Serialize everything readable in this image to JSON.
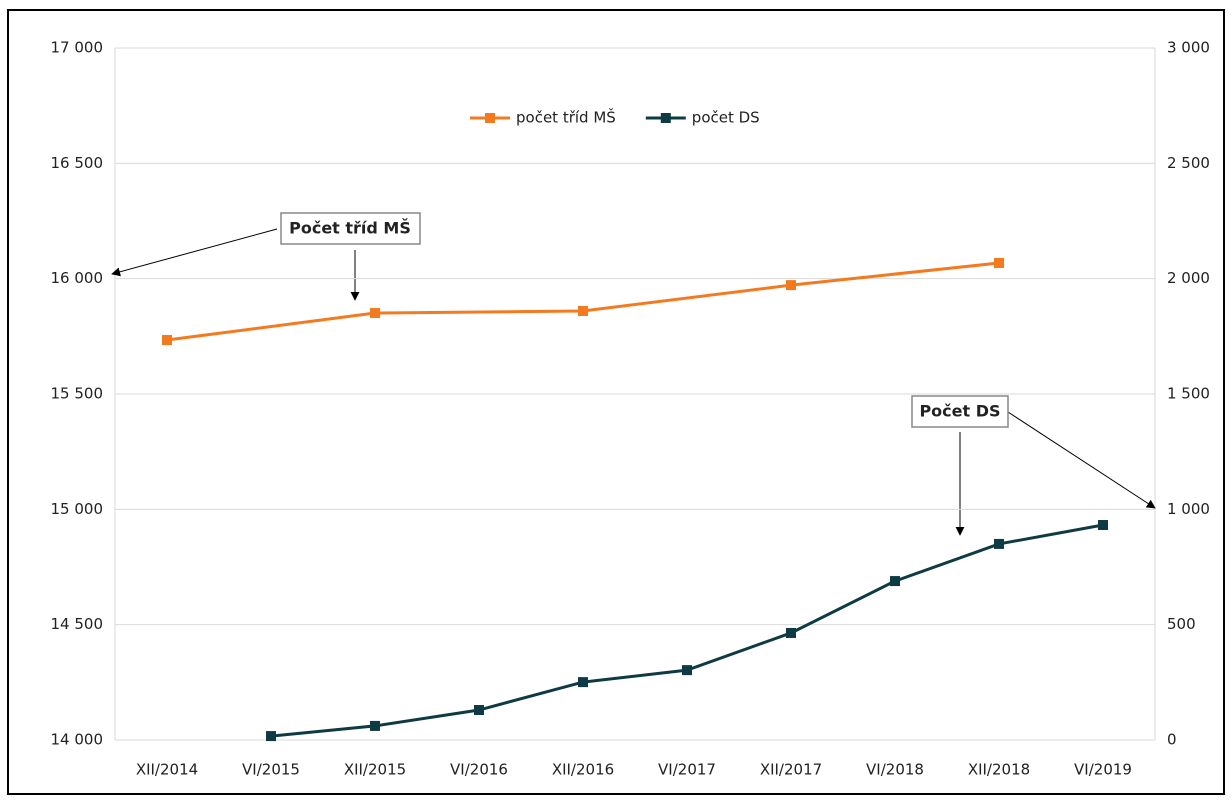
{
  "chart_data": {
    "type": "line",
    "categories": [
      "XII/2014",
      "VI/2015",
      "XII/2015",
      "VI/2016",
      "XII/2016",
      "VI/2017",
      "XII/2017",
      "VI/2018",
      "XII/2018",
      "VI/2019"
    ],
    "series": [
      {
        "name": "počet tříd MŠ",
        "color": "#f47a20",
        "values": [
          15734,
          null,
          15851,
          null,
          15860,
          null,
          15972,
          null,
          16068,
          null
        ]
      },
      {
        "name": "počet DS",
        "color": "#0e3b43",
        "axis": "y2",
        "values": [
          null,
          17,
          61,
          130,
          251,
          303,
          464,
          689,
          850,
          932
        ]
      }
    ],
    "ylim": [
      14000,
      17000
    ],
    "yticks": [
      {
        "value": 14000,
        "label": "14 000"
      },
      {
        "value": 14500,
        "label": "14 500"
      },
      {
        "value": 15000,
        "label": "15 000"
      },
      {
        "value": 15500,
        "label": "15 500"
      },
      {
        "value": 16000,
        "label": "16 000"
      },
      {
        "value": 16500,
        "label": "16 500"
      },
      {
        "value": 17000,
        "label": "17 000"
      }
    ],
    "y2lim": [
      0,
      3000
    ],
    "y2ticks": [
      0,
      500,
      {
        "value": 1000,
        "label": "1 000"
      },
      {
        "value": 1500,
        "label": "1 500"
      },
      {
        "value": 2000,
        "label": "2 000"
      },
      {
        "value": 2500,
        "label": "2 500"
      },
      {
        "value": 3000,
        "label": "3 000"
      }
    ],
    "grid": true,
    "legend": "top",
    "annotations": [
      "Počet tříd MŠ",
      "Počet DS"
    ]
  }
}
